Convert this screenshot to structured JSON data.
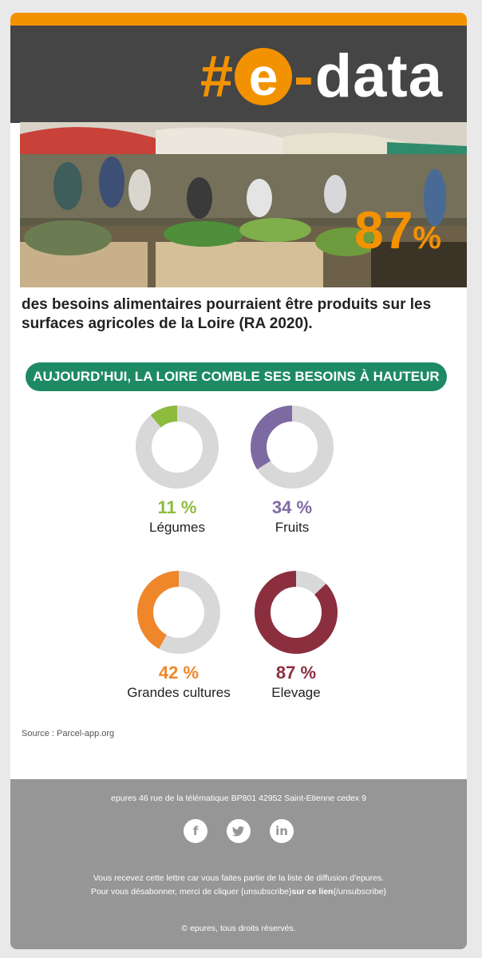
{
  "header": {
    "logo": {
      "hash": "#",
      "e": "e",
      "dash": "-",
      "word": "data"
    },
    "accent_color": "#f39200",
    "header_color": "#454545"
  },
  "hero": {
    "big_value": "87",
    "big_unit": "%",
    "lead_text": "des besoins alimentaires pourraient être produits sur les surfaces agricoles de la Loire (RA 2020)."
  },
  "section": {
    "pill_text": "AUJOURD’HUI, LA LOIRE COMBLE SES BESOINS À HAUTEUR",
    "pill_color": "#1e8a64"
  },
  "chart_data": [
    {
      "type": "pie",
      "label": "Légumes",
      "value": 11,
      "value_text": "11 %",
      "color": "#8dbb3e",
      "rest_color": "#d8d8d8"
    },
    {
      "type": "pie",
      "label": "Fruits",
      "value": 34,
      "value_text": "34 %",
      "color": "#7e6aa3",
      "rest_color": "#d8d8d8"
    },
    {
      "type": "pie",
      "label": "Grandes cultures",
      "value": 42,
      "value_text": "42 %",
      "color": "#f0862a",
      "rest_color": "#d8d8d8"
    },
    {
      "type": "pie",
      "label": "Elevage",
      "value": 87,
      "value_text": "87 %",
      "color": "#8b2f3f",
      "rest_color": "#d8d8d8"
    }
  ],
  "source": "Source : Parcel-app.org",
  "footer": {
    "address": "epures 46 rue de la télématique BP801 42952 Saint-Etienne cedex 9",
    "social": [
      {
        "icon": "facebook-icon",
        "glyph": "f"
      },
      {
        "icon": "twitter-icon",
        "glyph": "t"
      },
      {
        "icon": "linkedin-icon",
        "glyph": "in"
      }
    ],
    "notice_line1": "Vous recevez cette lettre car vous faites partie de la liste de diffusion d'epures.",
    "notice_line2_pre": "Pour vous désabonner, merci de cliquer {unsubscribe}",
    "notice_link": "sur ce lien",
    "notice_line2_post": "{/unsubscribe}",
    "copyright": "© epures, tous droits réservés."
  }
}
